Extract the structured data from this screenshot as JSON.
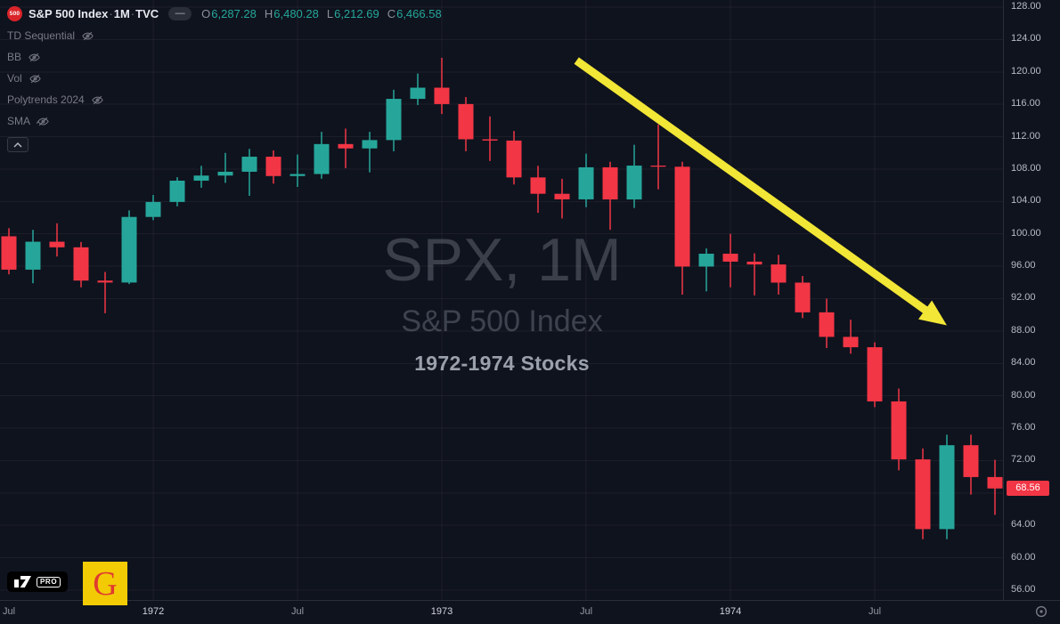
{
  "header": {
    "symbol_badge": "500",
    "title": "S&P 500 Index",
    "separator": "·",
    "interval": "1M",
    "exchange": "TVC",
    "ohlc": {
      "o_label": "O",
      "o": "6,287.28",
      "h_label": "H",
      "h": "6,480.28",
      "l_label": "L",
      "l": "6,212.69",
      "c_label": "C",
      "c": "6,466.58"
    }
  },
  "indicators": [
    {
      "name": "TD Sequential"
    },
    {
      "name": "BB"
    },
    {
      "name": "Vol"
    },
    {
      "name": "Polytrends 2024"
    },
    {
      "name": "SMA"
    }
  ],
  "watermark": {
    "line1": "SPX, 1M",
    "line2": "S&P 500 Index",
    "line3": "1972-1974 Stocks"
  },
  "price_label": {
    "value": "68.56",
    "color": "#f23645"
  },
  "price_axis": {
    "min": 56,
    "max": 128,
    "step": 4,
    "decimals": 2
  },
  "time_axis": {
    "ticks": [
      {
        "label": "Jul",
        "i": 0,
        "major": false
      },
      {
        "label": "1972",
        "i": 6,
        "major": true
      },
      {
        "label": "Jul",
        "i": 12,
        "major": false
      },
      {
        "label": "1973",
        "i": 18,
        "major": true
      },
      {
        "label": "Jul",
        "i": 24,
        "major": false
      },
      {
        "label": "1974",
        "i": 30,
        "major": true
      },
      {
        "label": "Jul",
        "i": 36,
        "major": false
      }
    ]
  },
  "logos": {
    "pro_badge": "PRO",
    "g_monogram": "G"
  },
  "annotations": {
    "arrow": {
      "from_i": 23.6,
      "from_price": 121.4,
      "to_i": 39.0,
      "to_price": 88.7,
      "color": "#f2e636"
    }
  },
  "chart_data": {
    "type": "candlestick",
    "symbol": "SPX",
    "interval": "1M",
    "title": "S&P 500 Index 1972-1974",
    "ylim": [
      56,
      128
    ],
    "up_color": "#26a69a",
    "down_color": "#f23645",
    "candles": [
      {
        "t": "1971-07",
        "o": 99.7,
        "h": 100.7,
        "l": 95.0,
        "c": 95.58
      },
      {
        "t": "1971-08",
        "o": 95.58,
        "h": 100.5,
        "l": 93.9,
        "c": 99.03
      },
      {
        "t": "1971-09",
        "o": 99.03,
        "h": 101.3,
        "l": 97.2,
        "c": 98.34
      },
      {
        "t": "1971-10",
        "o": 98.34,
        "h": 99.0,
        "l": 93.4,
        "c": 94.23
      },
      {
        "t": "1971-11",
        "o": 94.23,
        "h": 95.3,
        "l": 90.2,
        "c": 93.99
      },
      {
        "t": "1971-12",
        "o": 93.99,
        "h": 102.9,
        "l": 93.8,
        "c": 102.09
      },
      {
        "t": "1972-01",
        "o": 102.09,
        "h": 104.8,
        "l": 101.7,
        "c": 103.94
      },
      {
        "t": "1972-02",
        "o": 103.94,
        "h": 107.0,
        "l": 103.4,
        "c": 106.57
      },
      {
        "t": "1972-03",
        "o": 106.57,
        "h": 108.4,
        "l": 105.7,
        "c": 107.2
      },
      {
        "t": "1972-04",
        "o": 107.2,
        "h": 110.0,
        "l": 106.3,
        "c": 107.67
      },
      {
        "t": "1972-05",
        "o": 107.67,
        "h": 110.5,
        "l": 104.7,
        "c": 109.53
      },
      {
        "t": "1972-06",
        "o": 109.53,
        "h": 110.3,
        "l": 106.2,
        "c": 107.14
      },
      {
        "t": "1972-07",
        "o": 107.14,
        "h": 109.8,
        "l": 105.8,
        "c": 107.39
      },
      {
        "t": "1972-08",
        "o": 107.39,
        "h": 112.6,
        "l": 106.8,
        "c": 111.09
      },
      {
        "t": "1972-09",
        "o": 111.09,
        "h": 113.0,
        "l": 108.1,
        "c": 110.55
      },
      {
        "t": "1972-10",
        "o": 110.55,
        "h": 112.6,
        "l": 107.6,
        "c": 111.58
      },
      {
        "t": "1972-11",
        "o": 111.58,
        "h": 117.8,
        "l": 110.2,
        "c": 116.67
      },
      {
        "t": "1972-12",
        "o": 116.67,
        "h": 119.8,
        "l": 115.9,
        "c": 118.05
      },
      {
        "t": "1973-01",
        "o": 118.05,
        "h": 121.74,
        "l": 114.8,
        "c": 116.03
      },
      {
        "t": "1973-02",
        "o": 116.03,
        "h": 116.9,
        "l": 110.2,
        "c": 111.68
      },
      {
        "t": "1973-03",
        "o": 111.68,
        "h": 114.5,
        "l": 109.0,
        "c": 111.52
      },
      {
        "t": "1973-04",
        "o": 111.52,
        "h": 112.7,
        "l": 106.1,
        "c": 106.97
      },
      {
        "t": "1973-05",
        "o": 106.97,
        "h": 108.4,
        "l": 102.6,
        "c": 104.95
      },
      {
        "t": "1973-06",
        "o": 104.95,
        "h": 106.8,
        "l": 101.9,
        "c": 104.26
      },
      {
        "t": "1973-07",
        "o": 104.26,
        "h": 109.9,
        "l": 103.3,
        "c": 108.22
      },
      {
        "t": "1973-08",
        "o": 108.22,
        "h": 108.9,
        "l": 100.5,
        "c": 104.25
      },
      {
        "t": "1973-09",
        "o": 104.25,
        "h": 111.0,
        "l": 103.2,
        "c": 108.43
      },
      {
        "t": "1973-10",
        "o": 108.43,
        "h": 113.5,
        "l": 105.5,
        "c": 108.29
      },
      {
        "t": "1973-11",
        "o": 108.29,
        "h": 108.9,
        "l": 92.5,
        "c": 95.96
      },
      {
        "t": "1973-12",
        "o": 95.96,
        "h": 98.2,
        "l": 92.9,
        "c": 97.55
      },
      {
        "t": "1974-01",
        "o": 97.55,
        "h": 100.0,
        "l": 93.4,
        "c": 96.57
      },
      {
        "t": "1974-02",
        "o": 96.57,
        "h": 97.6,
        "l": 92.4,
        "c": 96.22
      },
      {
        "t": "1974-03",
        "o": 96.22,
        "h": 97.4,
        "l": 92.5,
        "c": 93.98
      },
      {
        "t": "1974-04",
        "o": 93.98,
        "h": 94.8,
        "l": 89.6,
        "c": 90.31
      },
      {
        "t": "1974-05",
        "o": 90.31,
        "h": 92.0,
        "l": 85.9,
        "c": 87.28
      },
      {
        "t": "1974-06",
        "o": 87.28,
        "h": 89.4,
        "l": 85.2,
        "c": 86.0
      },
      {
        "t": "1974-07",
        "o": 86.0,
        "h": 86.6,
        "l": 78.6,
        "c": 79.31
      },
      {
        "t": "1974-08",
        "o": 79.31,
        "h": 80.9,
        "l": 70.8,
        "c": 72.15
      },
      {
        "t": "1974-09",
        "o": 72.15,
        "h": 73.5,
        "l": 62.3,
        "c": 63.54
      },
      {
        "t": "1974-10",
        "o": 63.54,
        "h": 75.2,
        "l": 62.3,
        "c": 73.9
      },
      {
        "t": "1974-11",
        "o": 73.9,
        "h": 75.2,
        "l": 67.8,
        "c": 69.97
      },
      {
        "t": "1974-12",
        "o": 69.97,
        "h": 72.1,
        "l": 65.3,
        "c": 68.56
      }
    ]
  }
}
